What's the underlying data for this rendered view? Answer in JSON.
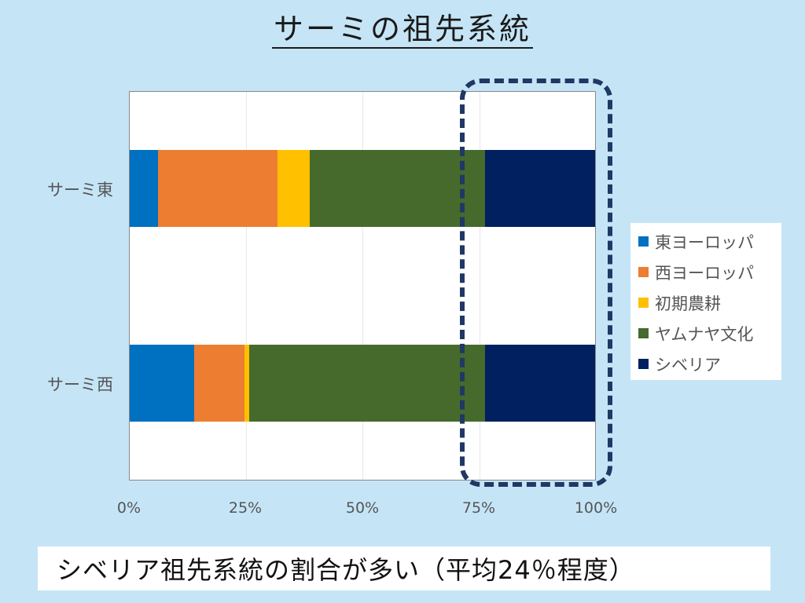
{
  "title": "サーミの祖先系統",
  "caption": "シベリア祖先系統の割合が多い（平均24％程度）",
  "colors": {
    "east_europe": "#0070c0",
    "west_europe": "#ed7d31",
    "early_farmer": "#ffc000",
    "yamnaya": "#466a2c",
    "siberia": "#002060",
    "highlight_border": "#1f3864",
    "background": "#c5e5f7"
  },
  "legend": [
    {
      "label": "東ヨーロッパ",
      "color": "#0070c0"
    },
    {
      "label": "西ヨーロッパ",
      "color": "#ed7d31"
    },
    {
      "label": "初期農耕",
      "color": "#ffc000"
    },
    {
      "label": "ヤムナヤ文化",
      "color": "#466a2c"
    },
    {
      "label": "シベリア",
      "color": "#002060"
    }
  ],
  "x_ticks": [
    "0%",
    "25%",
    "50%",
    "75%",
    "100%"
  ],
  "y_labels": [
    "サーミ東",
    "サーミ西"
  ],
  "chart_data": {
    "type": "bar",
    "orientation": "horizontal",
    "stacked": "percent",
    "title": "サーミの祖先系統",
    "xlabel": "",
    "ylabel": "",
    "xlim": [
      0,
      100
    ],
    "x_tick_labels": [
      "0%",
      "25%",
      "50%",
      "75%",
      "100%"
    ],
    "categories": [
      "サーミ東",
      "サーミ西"
    ],
    "series": [
      {
        "name": "東ヨーロッパ",
        "color": "#0070c0",
        "values": [
          6.1,
          13.8
        ]
      },
      {
        "name": "西ヨーロッパ",
        "color": "#ed7d31",
        "values": [
          25.6,
          10.9
        ]
      },
      {
        "name": "初期農耕",
        "color": "#ffc000",
        "values": [
          6.9,
          1.0
        ]
      },
      {
        "name": "ヤムナヤ文化",
        "color": "#466a2c",
        "values": [
          37.7,
          50.6
        ]
      },
      {
        "name": "シベリア",
        "color": "#002060",
        "values": [
          23.7,
          23.7
        ]
      }
    ],
    "legend_position": "right",
    "grid": "vertical",
    "annotations": [
      {
        "type": "dashed-rounded-box",
        "target": "シベリア segments (~75%–100%)"
      },
      {
        "type": "caption",
        "text": "シベリア祖先系統の割合が多い（平均24％程度）"
      }
    ]
  }
}
